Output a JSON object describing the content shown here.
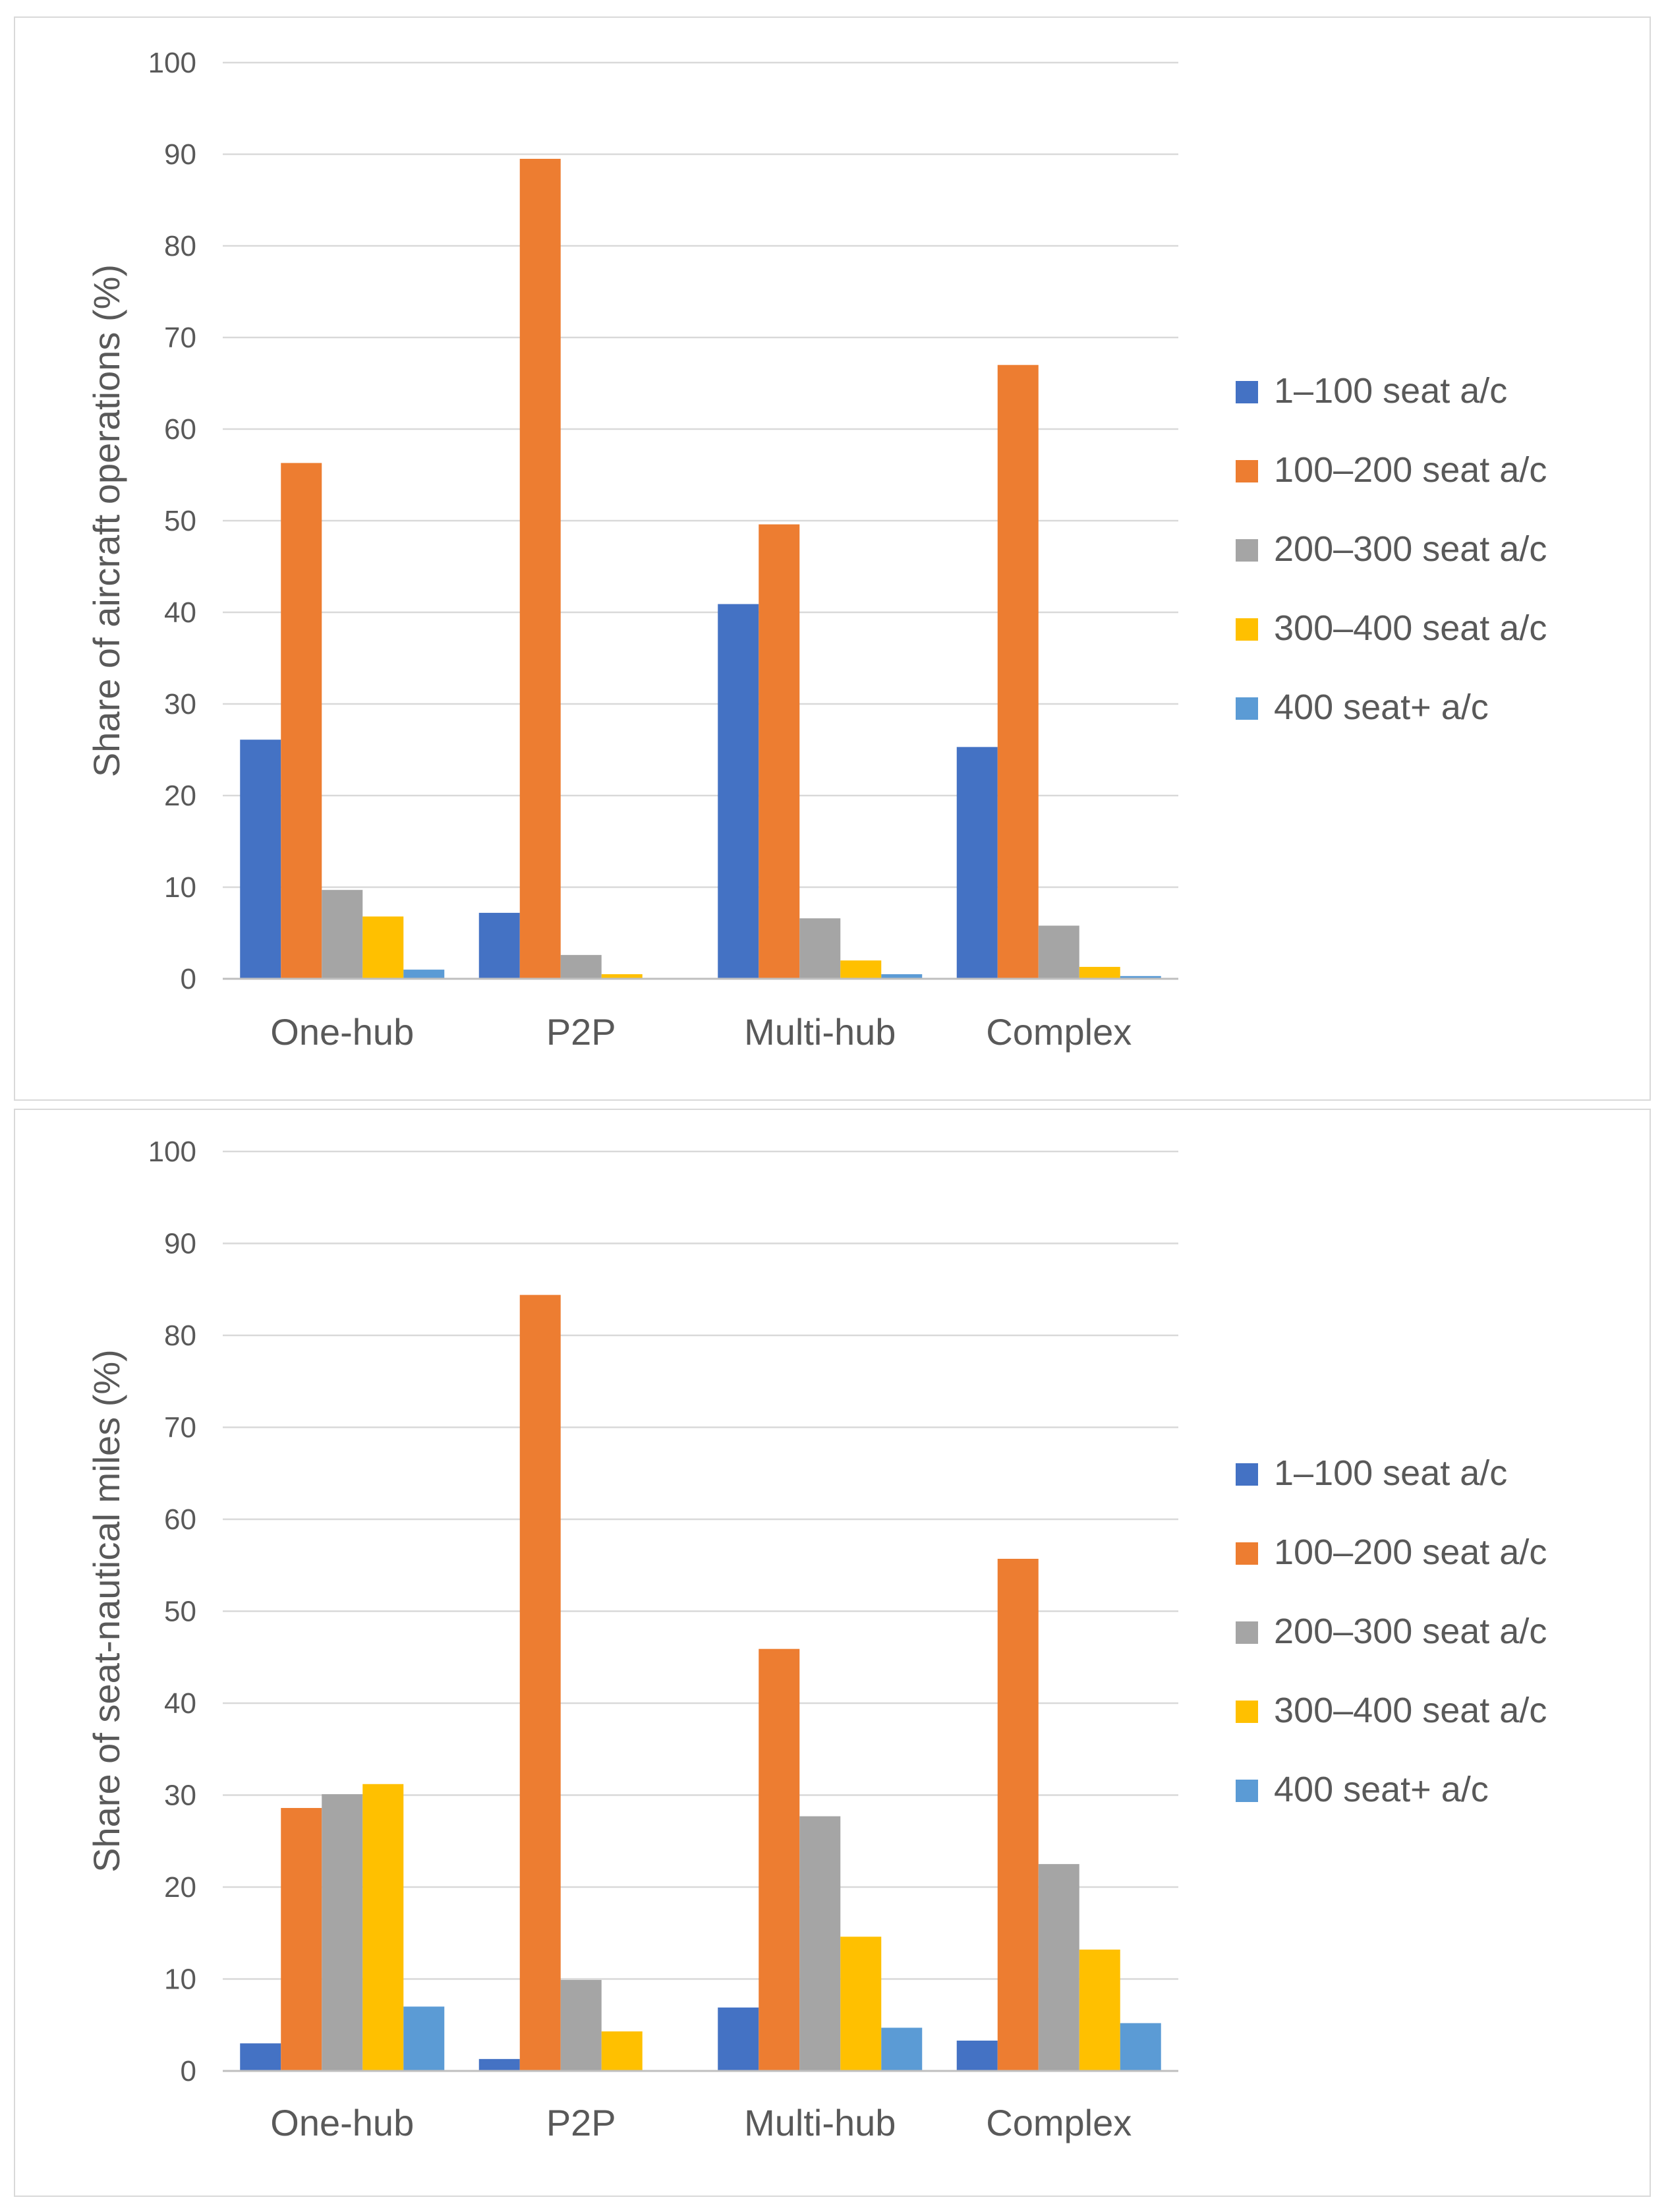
{
  "chart_data": [
    {
      "type": "bar",
      "title": "",
      "xlabel": "",
      "ylabel": "Share of aircraft operations (%)",
      "ylim": [
        0,
        100
      ],
      "yticks": [
        0,
        10,
        20,
        30,
        40,
        50,
        60,
        70,
        80,
        90,
        100
      ],
      "grid": true,
      "legend_position": "right",
      "categories": [
        "One-hub",
        "P2P",
        "Multi-hub",
        "Complex"
      ],
      "series": [
        {
          "name": "1–100 seat a/c",
          "color": "#4472c4",
          "values": [
            26.1,
            7.2,
            40.9,
            25.3
          ]
        },
        {
          "name": "100–200 seat a/c",
          "color": "#ed7d31",
          "values": [
            56.3,
            89.5,
            49.6,
            67.0
          ]
        },
        {
          "name": "200–300 seat a/c",
          "color": "#a5a5a5",
          "values": [
            9.7,
            2.6,
            6.6,
            5.8
          ]
        },
        {
          "name": "300–400 seat a/c",
          "color": "#ffc000",
          "values": [
            6.8,
            0.5,
            2.0,
            1.3
          ]
        },
        {
          "name": "400 seat+ a/c",
          "color": "#5b9bd5",
          "values": [
            1.0,
            0.0,
            0.5,
            0.3
          ]
        }
      ]
    },
    {
      "type": "bar",
      "title": "",
      "xlabel": "",
      "ylabel": "Share of seat-nautical miles (%)",
      "ylim": [
        0,
        100
      ],
      "yticks": [
        0,
        10,
        20,
        30,
        40,
        50,
        60,
        70,
        80,
        90,
        100
      ],
      "grid": true,
      "legend_position": "right",
      "categories": [
        "One-hub",
        "P2P",
        "Multi-hub",
        "Complex"
      ],
      "series": [
        {
          "name": "1–100 seat a/c",
          "color": "#4472c4",
          "values": [
            3.0,
            1.3,
            6.9,
            3.3
          ]
        },
        {
          "name": "100–200 seat a/c",
          "color": "#ed7d31",
          "values": [
            28.6,
            84.4,
            45.9,
            55.7
          ]
        },
        {
          "name": "200–300 seat a/c",
          "color": "#a5a5a5",
          "values": [
            30.1,
            9.9,
            27.7,
            22.5
          ]
        },
        {
          "name": "300–400 seat a/c",
          "color": "#ffc000",
          "values": [
            31.2,
            4.3,
            14.6,
            13.2
          ]
        },
        {
          "name": "400 seat+ a/c",
          "color": "#5b9bd5",
          "values": [
            7.0,
            0.0,
            4.7,
            5.2
          ]
        }
      ]
    }
  ]
}
